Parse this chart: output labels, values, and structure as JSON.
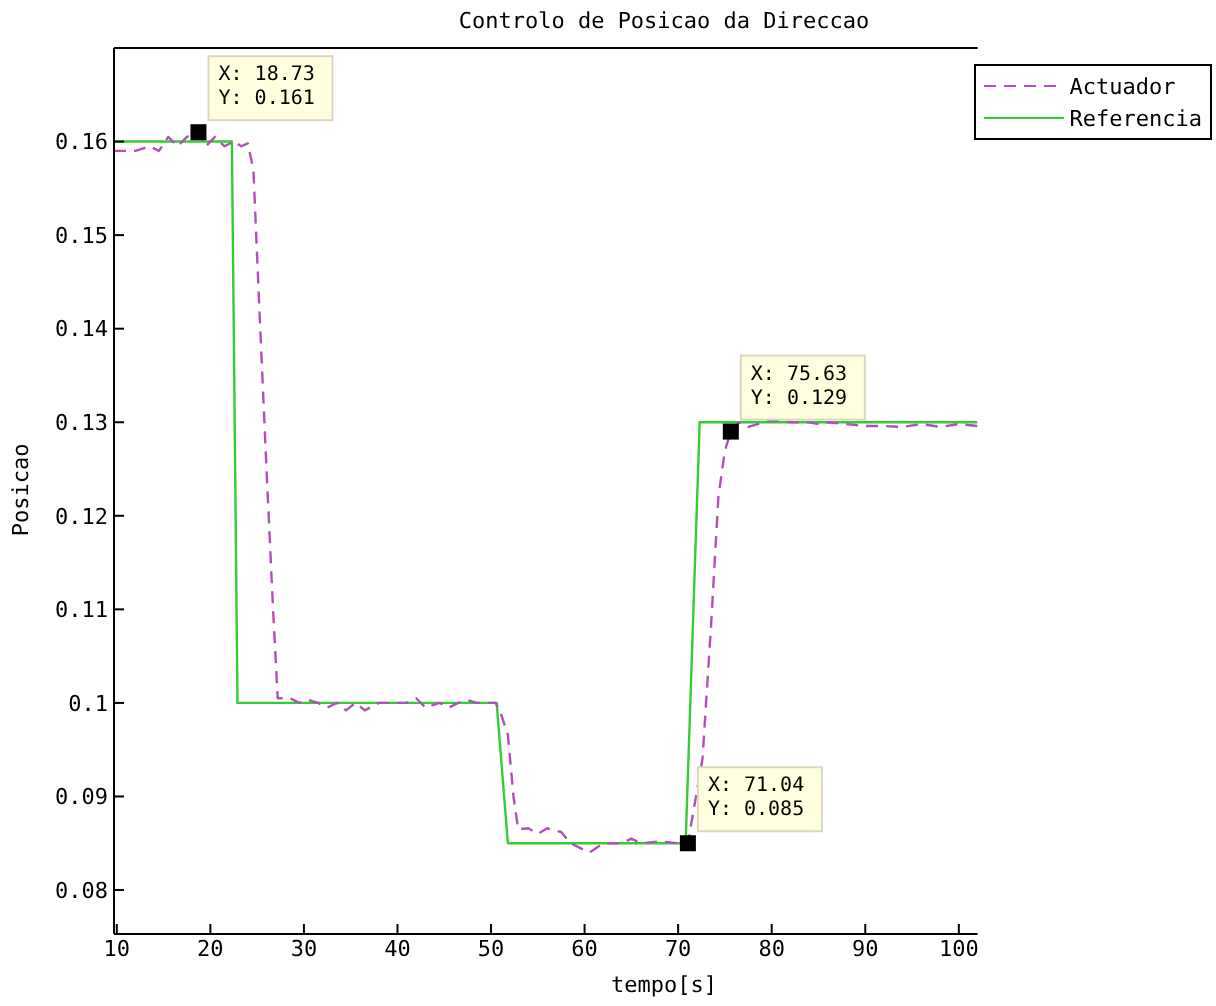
{
  "chart_data": {
    "type": "line",
    "title": "Controlo de Posicao da Direccao",
    "xlabel": "tempo[s]",
    "ylabel": "Posicao",
    "xlim": [
      9.7,
      102
    ],
    "xticks": [
      10,
      20,
      30,
      40,
      50,
      60,
      70,
      80,
      90,
      100
    ],
    "ylim": [
      0.0753,
      0.17
    ],
    "yticks": [
      0.08,
      0.09,
      0.1,
      0.11,
      0.12,
      0.13,
      0.14,
      0.15,
      0.16
    ],
    "grid": false,
    "legend": "top right",
    "marker": "none",
    "series": [
      {
        "name": "Actuador",
        "color": "#b050b8",
        "line_style": "dashed",
        "x": [
          9.7,
          12,
          13.5,
          14.5,
          15.5,
          16.5,
          17.5,
          18.73,
          19.5,
          20.5,
          21.5,
          22.5,
          23.3,
          24.0,
          24.6,
          25.2,
          26.0,
          26.7,
          27.2,
          28.5,
          29.5,
          30.5,
          31.5,
          32.5,
          33.5,
          34.5,
          35.5,
          36.5,
          38,
          41,
          42,
          43,
          44.5,
          45.5,
          46.5,
          47.5,
          48.5,
          50.5,
          51,
          51.8,
          52.4,
          52.9,
          54,
          55,
          56,
          57.5,
          58.5,
          59.5,
          60.5,
          62,
          64,
          65,
          66,
          68,
          70,
          71.04,
          72.6,
          73.5,
          74.3,
          75,
          75.63,
          76.5,
          77.5,
          78.5,
          80,
          82,
          84,
          85,
          86,
          88,
          90,
          92,
          94,
          96,
          98,
          100,
          102
        ],
        "values": [
          0.159,
          0.159,
          0.1595,
          0.159,
          0.1605,
          0.1595,
          0.1605,
          0.161,
          0.1595,
          0.1605,
          0.1595,
          0.16,
          0.1595,
          0.1598,
          0.157,
          0.143,
          0.125,
          0.11,
          0.1005,
          0.1005,
          0.1,
          0.1003,
          0.1,
          0.0995,
          0.1,
          0.0992,
          0.1,
          0.0992,
          0.1,
          0.1,
          0.1005,
          0.0995,
          0.1,
          0.0995,
          0.1,
          0.1003,
          0.1,
          0.1,
          0.099,
          0.0966,
          0.09,
          0.0865,
          0.0866,
          0.086,
          0.0866,
          0.0862,
          0.085,
          0.0845,
          0.084,
          0.085,
          0.085,
          0.0855,
          0.085,
          0.0852,
          0.085,
          0.085,
          0.094,
          0.108,
          0.122,
          0.127,
          0.129,
          0.13,
          0.1295,
          0.1298,
          0.1302,
          0.13,
          0.13,
          0.1298,
          0.13,
          0.1298,
          0.1296,
          0.1296,
          0.1295,
          0.1298,
          0.1295,
          0.1298,
          0.1296
        ]
      },
      {
        "name": "Referencia",
        "color": "#33cc33",
        "line_style": "solid",
        "x": [
          9.7,
          22.3,
          22.9,
          50.6,
          51.8,
          70.8,
          72.3,
          102
        ],
        "values": [
          0.16,
          0.16,
          0.1,
          0.1,
          0.085,
          0.085,
          0.13,
          0.13
        ]
      }
    ],
    "annotations": [
      {
        "text": "X: 18.73\nY: 0.161",
        "x": 18.73,
        "y": 0.161
      },
      {
        "text": "X: 75.63\nY: 0.129",
        "x": 75.63,
        "y": 0.129
      },
      {
        "text": "X: 71.04\nY: 0.085",
        "x": 71.04,
        "y": 0.085
      }
    ]
  }
}
